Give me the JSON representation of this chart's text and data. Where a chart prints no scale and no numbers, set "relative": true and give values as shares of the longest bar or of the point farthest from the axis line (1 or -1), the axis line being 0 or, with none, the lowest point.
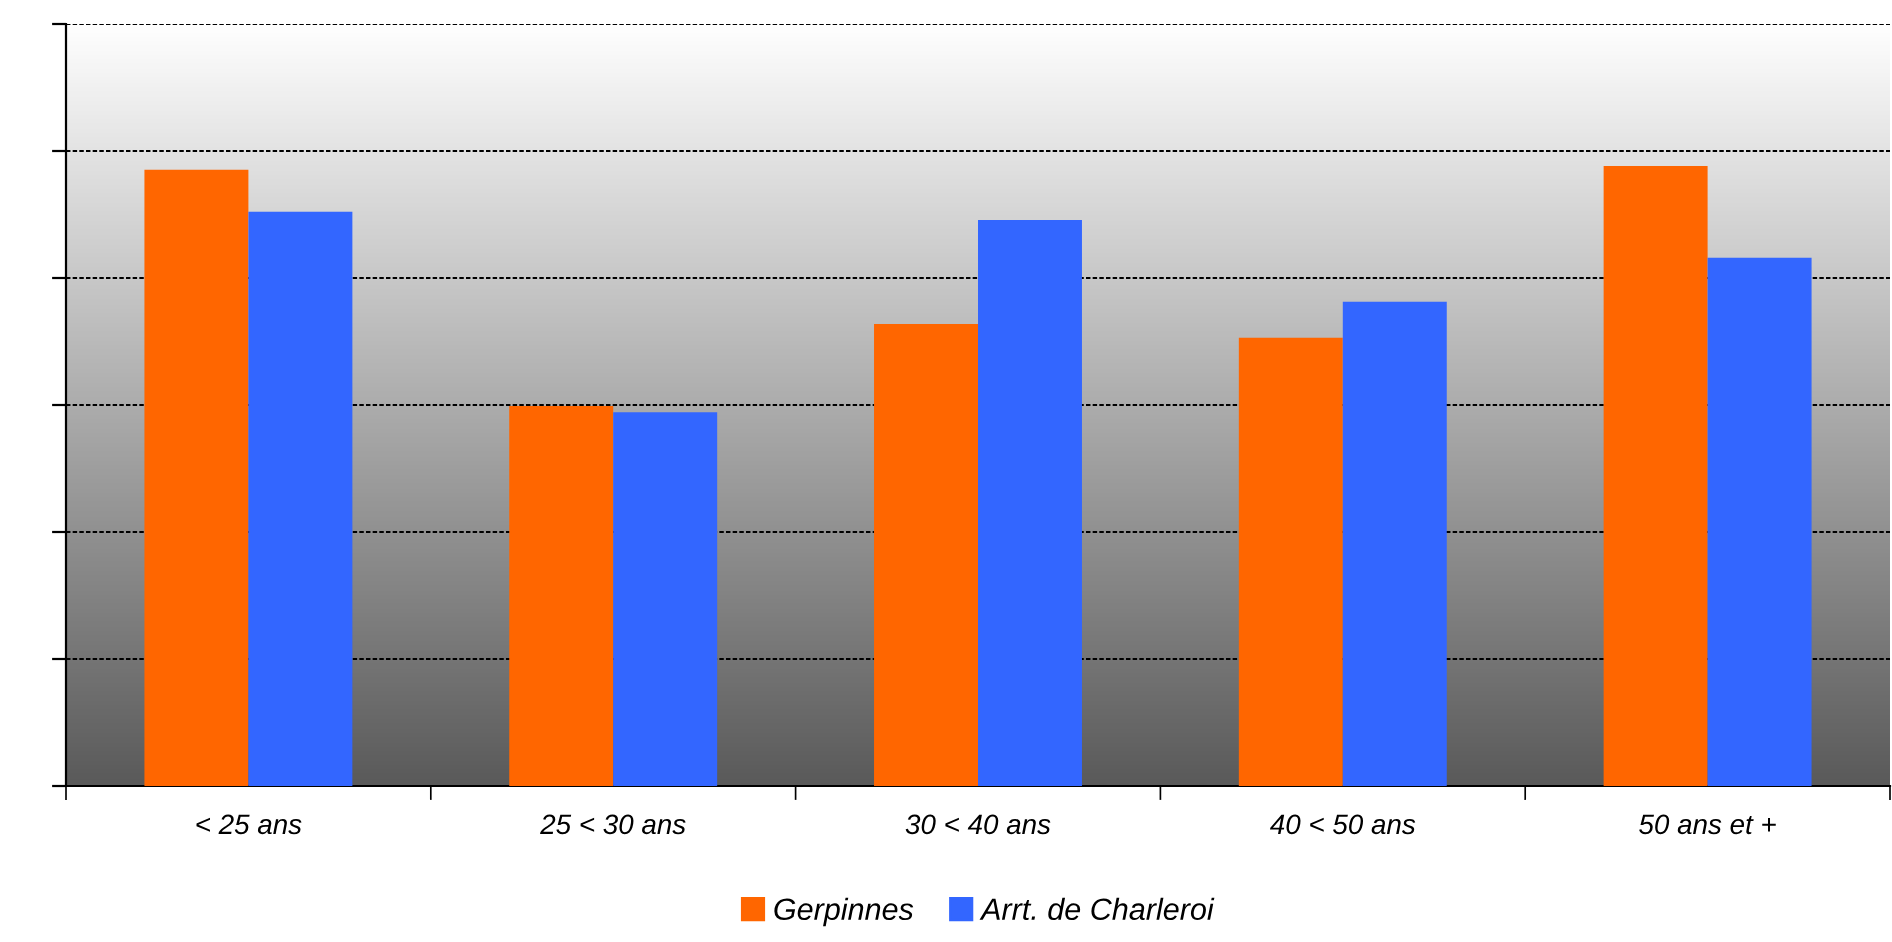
{
  "chart_data": {
    "type": "bar",
    "relative": true,
    "categories": [
      "< 25 ans",
      "25 < 30 ans",
      "30 < 40 ans",
      "40 < 50 ans",
      "50 ans et +"
    ],
    "series": [
      {
        "name": "Gerpinnes",
        "color": "#ff6600",
        "values": [
          0.994,
          0.613,
          0.745,
          0.723,
          1.0
        ]
      },
      {
        "name": "Arrt. de Charleroi",
        "color": "#3366ff",
        "values": [
          0.926,
          0.603,
          0.913,
          0.781,
          0.852
        ]
      }
    ],
    "grid": "y",
    "legend": "bottom"
  }
}
